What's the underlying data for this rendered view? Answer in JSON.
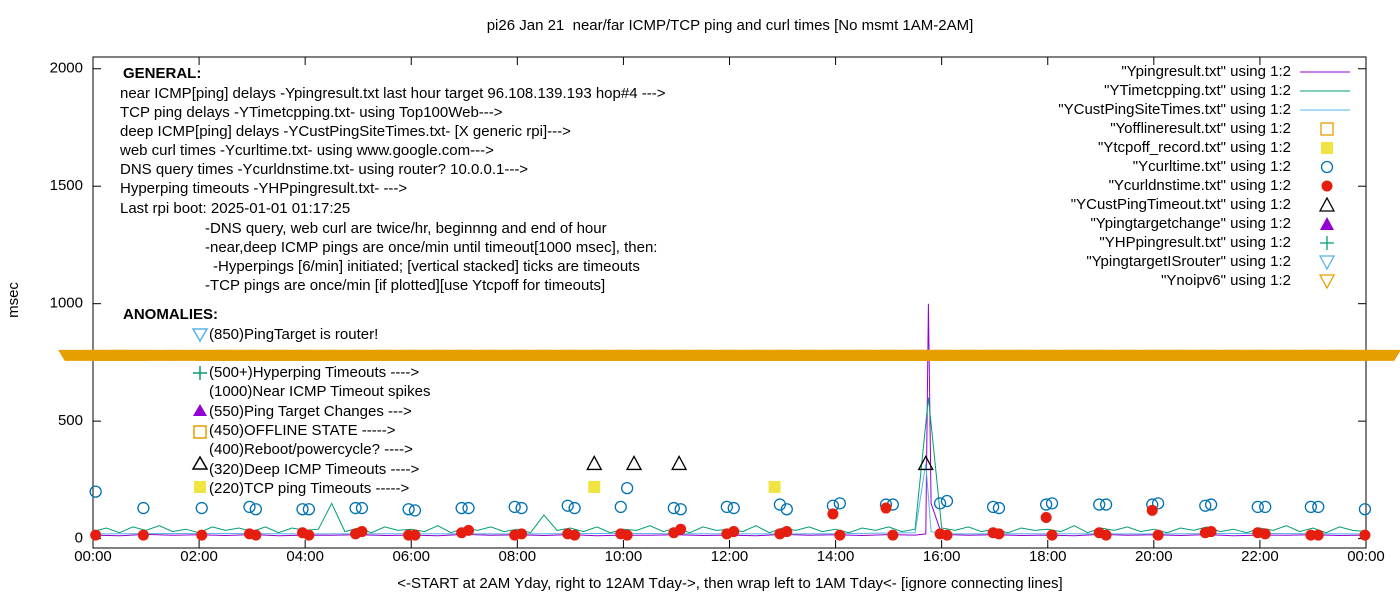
{
  "chart_data": {
    "type": "line",
    "title": "pi26 Jan 21  near/far ICMP/TCP ping and curl times [No msmt 1AM-2AM]",
    "x_label": "<-START at 2AM Yday, right to 12AM Tday->, then wrap left to 1AM Tday<- [ignore connecting lines]",
    "y_label": "msec",
    "xlim": [
      0,
      24
    ],
    "xticks": [
      {
        "value": 0,
        "label": "00:00"
      },
      {
        "value": 2,
        "label": "02:00"
      },
      {
        "value": 4,
        "label": "04:00"
      },
      {
        "value": 6,
        "label": "06:00"
      },
      {
        "value": 8,
        "label": "08:00"
      },
      {
        "value": 10,
        "label": "10:00"
      },
      {
        "value": 12,
        "label": "12:00"
      },
      {
        "value": 14,
        "label": "14:00"
      },
      {
        "value": 16,
        "label": "16:00"
      },
      {
        "value": 18,
        "label": "18:00"
      },
      {
        "value": 20,
        "label": "20:00"
      },
      {
        "value": 22,
        "label": "22:00"
      },
      {
        "value": 24,
        "label": "00:00"
      }
    ],
    "ylim": [
      -40,
      2050
    ],
    "yticks": [
      0,
      500,
      1000,
      1500,
      2000
    ],
    "grid": false,
    "legend": "top-right",
    "general_heading": "GENERAL:",
    "general_notes": [
      "near ICMP[ping] delays -Ypingresult.txt last hour target 96.108.139.193 hop#4 --->",
      "TCP ping delays -YTimetcpping.txt- using Top100Web--->",
      "deep ICMP[ping] delays -YCustPingSiteTimes.txt- [X generic rpi]--->",
      "web curl times -Ycurltime.txt- using www.google.com--->",
      "DNS query times -Ycurldnstime.txt- using router? 10.0.0.1--->",
      "Hyperping timeouts -YHPpingresult.txt- --->",
      "Last rpi boot: 2025-01-01 01:17:25",
      "-DNS query, web curl are twice/hr, beginnng and end of hour",
      "-near,deep ICMP pings are once/min until timeout[1000 msec], then:",
      "-Hyperpings [6/min] initiated; [vertical stacked] ticks are timeouts",
      "-TCP pings are once/min [if plotted][use Ytcpoff for timeouts]"
    ],
    "anomaly_heading": "ANOMALIES:",
    "anomaly_notes": [
      "(850)PingTarget is router!",
      "(500+)Hyperping Timeouts ---->",
      "(1000)Near ICMP Timeout spikes",
      "(550)Ping Target Changes --->",
      "(450)OFFLINE STATE ----->",
      "(400)Reboot/powercycle? ---->",
      "(320)Deep ICMP Timeouts ---->",
      "(220)TCP ping Timeouts ----->"
    ],
    "series": [
      {
        "name": "\"Ypingresult.txt\" using 1:2",
        "color": "#9400d3",
        "style": "line",
        "x": [
          0,
          0.5,
          1,
          1.5,
          2,
          2.5,
          3,
          3.5,
          4,
          4.5,
          5,
          5.5,
          6,
          6.5,
          7,
          7.5,
          8,
          8.5,
          9,
          9.5,
          10,
          10.5,
          11,
          11.5,
          12,
          12.5,
          13,
          13.5,
          14,
          14.5,
          15,
          15.5,
          15.7,
          15.75,
          15.8,
          16,
          16.5,
          17,
          17.5,
          18,
          18.5,
          19,
          19.5,
          20,
          20.5,
          21,
          21.5,
          22,
          22.5,
          23,
          23.5,
          24
        ],
        "values": [
          15,
          12,
          18,
          14,
          16,
          13,
          17,
          12,
          15,
          14,
          16,
          13,
          15,
          12,
          18,
          14,
          16,
          13,
          17,
          12,
          15,
          14,
          16,
          13,
          15,
          12,
          18,
          14,
          16,
          13,
          17,
          15,
          20,
          1000,
          150,
          18,
          14,
          16,
          13,
          15,
          12,
          18,
          14,
          16,
          13,
          17,
          12,
          15,
          14,
          16,
          13,
          15
        ]
      },
      {
        "name": "\"YTimetcpping.txt\" using 1:2",
        "color": "#009e73",
        "style": "line",
        "x": [
          0,
          0.25,
          0.5,
          0.75,
          1,
          1.25,
          1.5,
          1.75,
          2,
          2.25,
          2.5,
          2.75,
          3,
          3.25,
          3.5,
          3.75,
          4,
          4.25,
          4.5,
          4.75,
          5,
          5.25,
          5.5,
          5.75,
          6,
          6.25,
          6.5,
          6.75,
          7,
          7.25,
          7.5,
          7.75,
          8,
          8.25,
          8.5,
          8.75,
          9,
          9.25,
          9.5,
          9.75,
          10,
          10.25,
          10.5,
          10.75,
          11,
          11.25,
          11.5,
          11.75,
          12,
          12.25,
          12.5,
          12.75,
          13,
          13.25,
          13.5,
          13.75,
          14,
          14.25,
          14.5,
          14.75,
          15,
          15.25,
          15.5,
          15.75,
          16,
          16.25,
          16.5,
          16.75,
          17,
          17.25,
          17.5,
          17.75,
          18,
          18.25,
          18.5,
          18.75,
          19,
          19.25,
          19.5,
          19.75,
          20,
          20.25,
          20.5,
          20.75,
          21,
          21.25,
          21.5,
          21.75,
          22,
          22.25,
          22.5,
          22.75,
          23,
          23.25,
          23.5,
          23.75,
          24
        ],
        "values": [
          30,
          45,
          25,
          50,
          35,
          55,
          30,
          40,
          25,
          50,
          35,
          45,
          30,
          50,
          25,
          45,
          35,
          40,
          150,
          30,
          45,
          25,
          50,
          35,
          40,
          30,
          55,
          25,
          45,
          35,
          50,
          30,
          40,
          25,
          100,
          35,
          45,
          30,
          50,
          25,
          40,
          35,
          55,
          30,
          45,
          25,
          50,
          35,
          40,
          30,
          55,
          25,
          45,
          35,
          50,
          30,
          40,
          25,
          45,
          35,
          50,
          30,
          40,
          600,
          45,
          35,
          50,
          30,
          40,
          25,
          45,
          35,
          40,
          30,
          55,
          25,
          45,
          35,
          50,
          30,
          40,
          25,
          45,
          35,
          50,
          30,
          40,
          25,
          45,
          35,
          55,
          30,
          45,
          25,
          50,
          35,
          30
        ]
      },
      {
        "name": "\"YCustPingSiteTimes.txt\" using 1:2",
        "color": "#56b4e9",
        "style": "line",
        "x": [
          0,
          2,
          4,
          6,
          8,
          10,
          12,
          14,
          15.5,
          15.7,
          15.8,
          16,
          18,
          20,
          22,
          24
        ],
        "values": [
          20,
          22,
          20,
          21,
          20,
          22,
          20,
          21,
          25,
          320,
          30,
          20,
          21,
          20,
          22,
          20
        ]
      },
      {
        "name": "\"Yofflineresult.txt\" using 1:2",
        "color": "#e69f00",
        "style": "square-open",
        "x": [],
        "values": []
      },
      {
        "name": "\"Ytcpoff_record.txt\" using 1:2",
        "color": "#f0e442",
        "style": "square",
        "x": [
          9.45,
          12.85
        ],
        "values": [
          220,
          220
        ]
      },
      {
        "name": "\"Ycurltime.txt\" using 1:2",
        "color": "#0072b2",
        "style": "circle-open",
        "x": [
          0.05,
          0.95,
          2.05,
          2.95,
          3.07,
          3.95,
          4.07,
          4.95,
          5.07,
          5.95,
          6.07,
          6.95,
          7.08,
          7.95,
          8.08,
          8.95,
          9.08,
          9.95,
          10.07,
          10.95,
          11.08,
          11.95,
          12.08,
          12.95,
          13.08,
          13.95,
          14.08,
          14.95,
          15.08,
          15.97,
          16.1,
          16.97,
          17.08,
          17.97,
          18.08,
          18.97,
          19.1,
          19.97,
          20.08,
          20.97,
          21.08,
          21.96,
          22.1,
          22.96,
          23.1,
          23.98
        ],
        "values": [
          200,
          130,
          130,
          135,
          125,
          125,
          125,
          130,
          130,
          125,
          120,
          130,
          130,
          135,
          130,
          140,
          130,
          135,
          215,
          130,
          125,
          135,
          130,
          145,
          125,
          140,
          150,
          145,
          145,
          150,
          160,
          135,
          130,
          145,
          150,
          145,
          145,
          145,
          150,
          140,
          145,
          135,
          135,
          135,
          135,
          125
        ]
      },
      {
        "name": "\"Ycurldnstime.txt\" using 1:2",
        "color": "#e51e10",
        "style": "dot",
        "x": [
          0.05,
          0.95,
          2.05,
          2.95,
          3.07,
          3.95,
          4.07,
          4.95,
          5.07,
          5.95,
          6.07,
          6.95,
          7.08,
          7.95,
          8.08,
          8.95,
          9.08,
          9.95,
          10.07,
          10.95,
          11.08,
          11.95,
          12.08,
          12.95,
          13.08,
          13.95,
          14.08,
          14.95,
          15.08,
          15.97,
          16.1,
          16.97,
          17.08,
          17.97,
          18.08,
          18.97,
          19.1,
          19.97,
          20.08,
          20.97,
          21.08,
          21.96,
          22.1,
          22.96,
          23.1,
          23.98
        ],
        "values": [
          15,
          15,
          15,
          20,
          15,
          25,
          15,
          20,
          30,
          15,
          15,
          25,
          35,
          15,
          20,
          20,
          15,
          20,
          15,
          25,
          40,
          20,
          30,
          20,
          30,
          105,
          15,
          130,
          15,
          20,
          15,
          25,
          20,
          90,
          15,
          25,
          15,
          120,
          15,
          25,
          30,
          25,
          20,
          15,
          15,
          15
        ]
      },
      {
        "name": "\"YCustPingTimeout.txt\" using 1:2",
        "color": "#000000",
        "style": "triangle-open",
        "x": [
          9.45,
          10.2,
          11.05,
          15.7
        ],
        "values": [
          320,
          320,
          320,
          320
        ]
      },
      {
        "name": "\"Ypingtargetchange\" using 1:2",
        "color": "#9400d3",
        "style": "triangle",
        "x": [],
        "values": []
      },
      {
        "name": "\"YHPpingresult.txt\" using 1:2",
        "color": "#009e73",
        "style": "plus",
        "x": [],
        "values": []
      },
      {
        "name": "\"YpingtargetISrouter\" using 1:2",
        "color": "#56b4e9",
        "style": "triangle-down-open",
        "x": [],
        "values": []
      },
      {
        "name": "\"Ynoipv6\" using 1:2",
        "color": "#e69f00",
        "style": "triangle-down-open",
        "x": [
          0,
          0.5,
          1,
          2,
          2.5,
          3,
          3.5,
          4,
          4.5,
          5,
          5.5,
          6,
          6.5,
          7,
          7.5,
          8,
          8.5,
          9,
          9.5,
          10,
          10.5,
          11,
          11.5,
          12,
          12.5,
          13,
          13.5,
          14,
          14.5,
          15,
          15.5,
          16,
          16.5,
          17,
          17.5,
          18,
          18.5,
          19,
          19.5,
          20,
          20.5,
          21,
          21.5,
          22,
          22.5,
          23,
          23.5,
          24
        ],
        "values": [
          780,
          780,
          780,
          780,
          780,
          780,
          780,
          780,
          780,
          780,
          780,
          780,
          780,
          780,
          780,
          780,
          780,
          780,
          780,
          780,
          780,
          780,
          780,
          780,
          780,
          780,
          780,
          780,
          780,
          780,
          780,
          780,
          780,
          780,
          780,
          780,
          780,
          780,
          780,
          780,
          780,
          780,
          780,
          780,
          780,
          780,
          780,
          780
        ]
      }
    ]
  }
}
